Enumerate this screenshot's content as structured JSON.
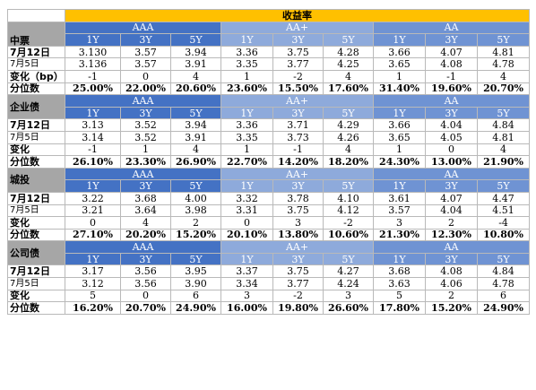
{
  "header": {
    "yield_title": "收益率"
  },
  "sections": [
    {
      "name": "中票",
      "groups": [
        "AAA",
        "AA+",
        "AA"
      ],
      "tenors": [
        "1Y",
        "3Y",
        "5Y",
        "1Y",
        "3Y",
        "5Y",
        "1Y",
        "3Y",
        "5Y"
      ],
      "rows": [
        {
          "label": "7月12日",
          "values": [
            "3.130",
            "3.57",
            "3.94",
            "3.36",
            "3.75",
            "4.28",
            "3.66",
            "4.07",
            "4.81"
          ]
        },
        {
          "label": "7月5日",
          "values": [
            "3.136",
            "3.57",
            "3.91",
            "3.35",
            "3.77",
            "4.25",
            "3.65",
            "4.08",
            "4.78"
          ]
        },
        {
          "label": "变化（bp）",
          "values": [
            "-1",
            "0",
            "4",
            "1",
            "-2",
            "4",
            "1",
            "-1",
            "4"
          ]
        },
        {
          "label": "分位数",
          "values": [
            "25.00%",
            "22.00%",
            "20.60%",
            "23.60%",
            "15.50%",
            "17.60%",
            "31.40%",
            "19.60%",
            "20.70%"
          ]
        }
      ]
    },
    {
      "name": "企业债",
      "groups": [
        "AAA",
        "AA+",
        "AA"
      ],
      "tenors": [
        "1Y",
        "3Y",
        "5Y",
        "1Y",
        "3Y",
        "5Y",
        "1Y",
        "3Y",
        "5Y"
      ],
      "rows": [
        {
          "label": "7月12日",
          "values": [
            "3.13",
            "3.52",
            "3.94",
            "3.36",
            "3.71",
            "4.29",
            "3.66",
            "4.04",
            "4.84"
          ]
        },
        {
          "label": "7月5日",
          "values": [
            "3.14",
            "3.52",
            "3.91",
            "3.35",
            "3.73",
            "4.26",
            "3.65",
            "4.05",
            "4.81"
          ]
        },
        {
          "label": "变化",
          "values": [
            "-1",
            "1",
            "4",
            "1",
            "-1",
            "4",
            "1",
            "0",
            "4"
          ]
        },
        {
          "label": "分位数",
          "values": [
            "26.10%",
            "23.30%",
            "26.90%",
            "22.70%",
            "14.20%",
            "18.20%",
            "24.30%",
            "13.00%",
            "21.90%"
          ]
        }
      ]
    },
    {
      "name": "城投",
      "groups": [
        "AAA",
        "AA+",
        "AA"
      ],
      "tenors": [
        "1Y",
        "3Y",
        "5Y",
        "1Y",
        "3Y",
        "5Y",
        "1Y",
        "3Y",
        "5Y"
      ],
      "rows": [
        {
          "label": "7月12日",
          "values": [
            "3.22",
            "3.68",
            "4.00",
            "3.32",
            "3.78",
            "4.10",
            "3.61",
            "4.07",
            "4.47"
          ]
        },
        {
          "label": "7月5日",
          "values": [
            "3.21",
            "3.64",
            "3.98",
            "3.31",
            "3.75",
            "4.12",
            "3.57",
            "4.04",
            "4.51"
          ]
        },
        {
          "label": "变化",
          "values": [
            "0",
            "4",
            "2",
            "0",
            "3",
            "-2",
            "3",
            "2",
            "-4"
          ]
        },
        {
          "label": "分位数",
          "values": [
            "27.10%",
            "20.20%",
            "15.20%",
            "20.10%",
            "13.80%",
            "10.60%",
            "21.30%",
            "12.30%",
            "10.80%"
          ]
        }
      ]
    },
    {
      "name": "公司债",
      "groups": [
        "AAA",
        "AA+",
        "AA"
      ],
      "tenors": [
        "1Y",
        "3Y",
        "5Y",
        "1Y",
        "3Y",
        "5Y",
        "1Y",
        "3Y",
        "5Y"
      ],
      "rows": [
        {
          "label": "7月12日",
          "values": [
            "3.17",
            "3.56",
            "3.95",
            "3.37",
            "3.75",
            "4.27",
            "3.68",
            "4.08",
            "4.84"
          ]
        },
        {
          "label": "7月5日",
          "values": [
            "3.12",
            "3.56",
            "3.90",
            "3.34",
            "3.77",
            "4.24",
            "3.63",
            "4.06",
            "4.78"
          ]
        },
        {
          "label": "变化",
          "values": [
            "5",
            "0",
            "6",
            "3",
            "-2",
            "3",
            "5",
            "2",
            "6"
          ]
        },
        {
          "label": "分位数",
          "values": [
            "16.20%",
            "20.70%",
            "24.90%",
            "16.00%",
            "19.80%",
            "26.60%",
            "17.80%",
            "15.20%",
            "24.90%"
          ]
        }
      ]
    }
  ]
}
